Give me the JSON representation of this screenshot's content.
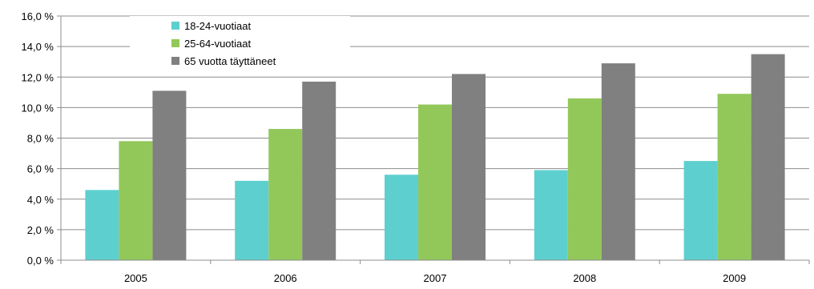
{
  "chart_data": {
    "type": "bar",
    "categories": [
      "2005",
      "2006",
      "2007",
      "2008",
      "2009"
    ],
    "series": [
      {
        "name": "18-24-vuotiaat",
        "color": "#5ecfcf",
        "values": [
          4.6,
          5.2,
          5.6,
          5.9,
          6.5
        ]
      },
      {
        "name": "25-64-vuotiaat",
        "color": "#92c85a",
        "values": [
          7.8,
          8.6,
          10.2,
          10.6,
          10.9
        ]
      },
      {
        "name": "65 vuotta täyttäneet",
        "color": "#808080",
        "values": [
          11.1,
          11.7,
          12.2,
          12.9,
          13.5
        ]
      }
    ],
    "y_ticks": [
      "0,0 %",
      "2,0 %",
      "4,0 %",
      "6,0 %",
      "8,0 %",
      "10,0 %",
      "12,0 %",
      "14,0 %",
      "16,0 %"
    ],
    "ylim": [
      0,
      16
    ],
    "ytick_step": 2,
    "grid": true,
    "legend_position": "top-left"
  }
}
